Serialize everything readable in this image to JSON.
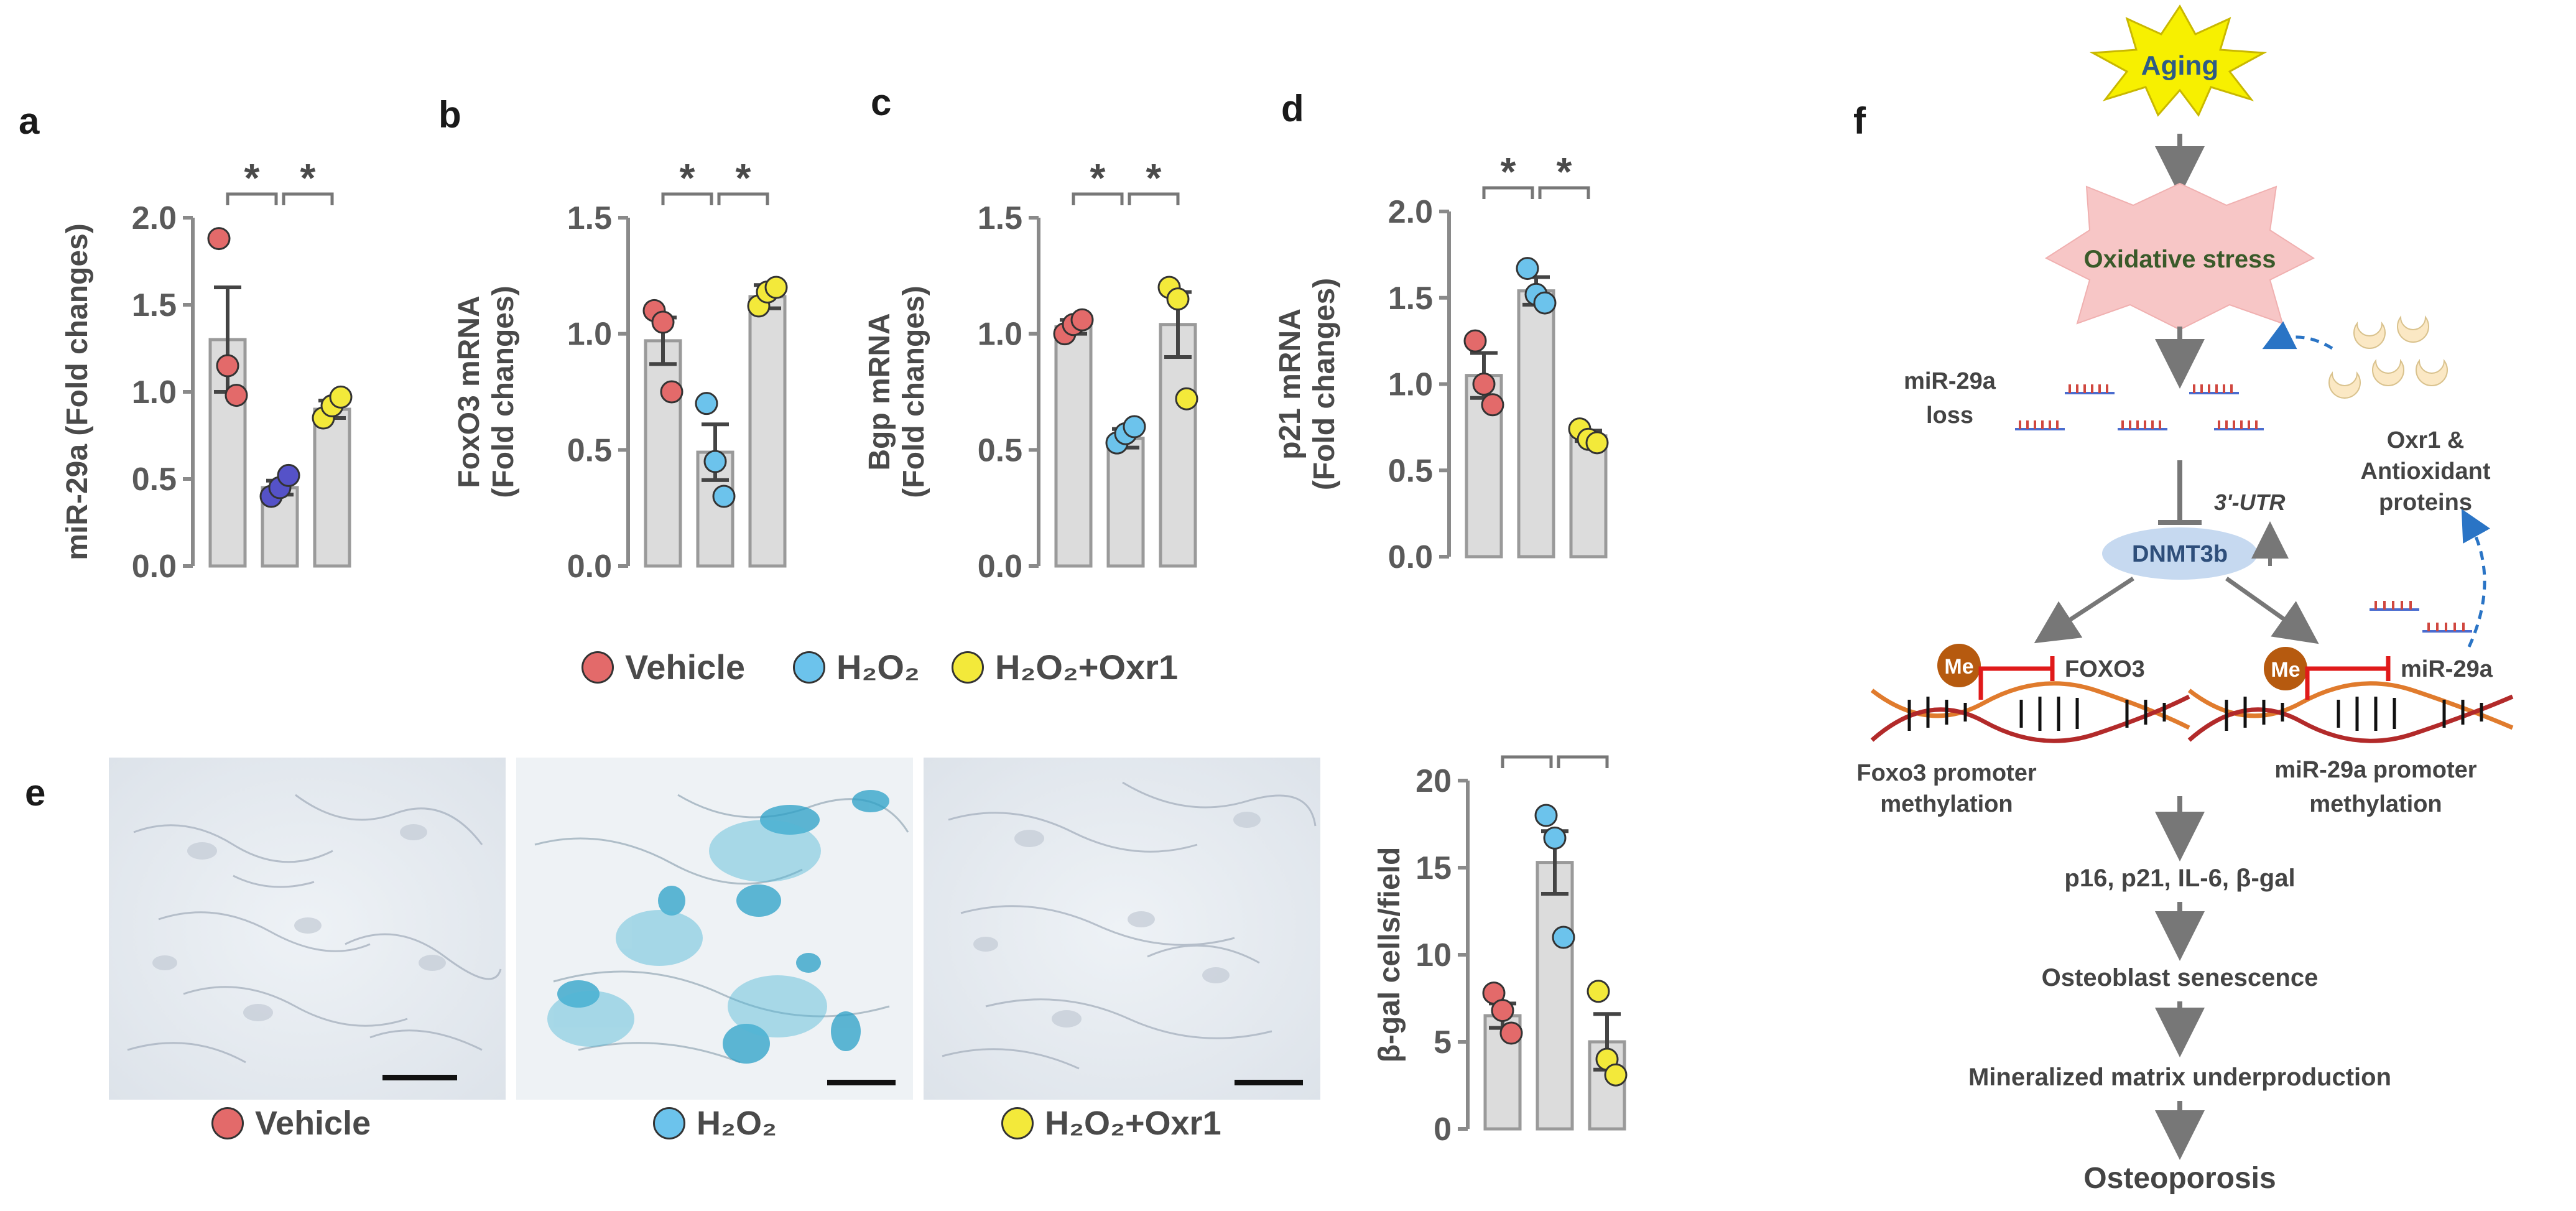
{
  "panels": {
    "a": "a",
    "b": "b",
    "c": "c",
    "d": "d",
    "e": "e",
    "f": "f"
  },
  "chart_data": [
    {
      "id": "a",
      "type": "bar",
      "ylabel": "miR-29a (Fold changes)",
      "yticks": [
        "0.0",
        "0.5",
        "1.0",
        "1.5",
        "2.0"
      ],
      "ylim": [
        0,
        2.0
      ],
      "categories": [
        "Vehicle",
        "H2O2",
        "H2O2+Oxr1"
      ],
      "values": [
        1.3,
        0.45,
        0.9
      ],
      "errors": [
        0.3,
        0.04,
        0.05
      ],
      "points": [
        [
          1.88,
          1.15,
          0.98
        ],
        [
          0.4,
          0.45,
          0.52
        ],
        [
          0.85,
          0.92,
          0.97
        ]
      ],
      "point_colors": [
        "#e36a6a",
        "#5552c8",
        "#f3e93a"
      ],
      "significance": [
        "*",
        "*"
      ]
    },
    {
      "id": "b",
      "type": "bar",
      "ylabel": "FoxO3 mRNA",
      "ylabel2": "(Fold changes)",
      "yticks": [
        "0.0",
        "0.5",
        "1.0",
        "1.5"
      ],
      "ylim": [
        0,
        1.5
      ],
      "categories": [
        "Vehicle",
        "H2O2",
        "H2O2+Oxr1"
      ],
      "values": [
        0.97,
        0.49,
        1.16
      ],
      "errors": [
        0.1,
        0.12,
        0.05
      ],
      "points": [
        [
          1.1,
          1.05,
          0.75
        ],
        [
          0.7,
          0.45,
          0.3
        ],
        [
          1.12,
          1.18,
          1.2
        ]
      ],
      "point_colors": [
        "#e36a6a",
        "#6cc3ec",
        "#f3e93a"
      ],
      "significance": [
        "*",
        "*"
      ]
    },
    {
      "id": "c",
      "type": "bar",
      "ylabel": "Bgp mRNA",
      "ylabel2": "(Fold changes)",
      "yticks": [
        "0.0",
        "0.5",
        "1.0",
        "1.5"
      ],
      "ylim": [
        0,
        1.5
      ],
      "categories": [
        "Vehicle",
        "H2O2",
        "H2O2+Oxr1"
      ],
      "values": [
        1.03,
        0.55,
        1.04
      ],
      "errors": [
        0.03,
        0.04,
        0.14
      ],
      "points": [
        [
          1.0,
          1.04,
          1.06
        ],
        [
          0.53,
          0.57,
          0.6
        ],
        [
          1.2,
          1.15,
          0.72
        ]
      ],
      "point_colors": [
        "#e36a6a",
        "#6cc3ec",
        "#f3e93a"
      ],
      "significance": [
        "*",
        "*"
      ]
    },
    {
      "id": "d",
      "type": "bar",
      "ylabel": "p21 mRNA",
      "ylabel2": "(Fold changes)",
      "yticks": [
        "0.0",
        "0.5",
        "1.0",
        "1.5",
        "2.0"
      ],
      "ylim": [
        0,
        2.0
      ],
      "categories": [
        "Vehicle",
        "H2O2",
        "H2O2+Oxr1"
      ],
      "values": [
        1.05,
        1.54,
        0.7
      ],
      "errors": [
        0.13,
        0.08,
        0.03
      ],
      "points": [
        [
          1.25,
          1.0,
          0.88
        ],
        [
          1.67,
          1.52,
          1.47
        ],
        [
          0.74,
          0.68,
          0.66
        ]
      ],
      "point_colors": [
        "#e36a6a",
        "#6cc3ec",
        "#f3e93a"
      ],
      "significance": [
        "*",
        "*"
      ]
    },
    {
      "id": "e",
      "type": "bar",
      "ylabel": "β-gal cells/field",
      "yticks": [
        "0",
        "5",
        "10",
        "15",
        "20"
      ],
      "ylim": [
        0,
        20
      ],
      "categories": [
        "Vehicle",
        "H2O2",
        "H2O2+Oxr1"
      ],
      "values": [
        6.5,
        15.3,
        5.0
      ],
      "errors": [
        0.7,
        1.8,
        1.6
      ],
      "points": [
        [
          7.8,
          6.8,
          5.5
        ],
        [
          18.0,
          16.7,
          11.0
        ],
        [
          7.9,
          4.0,
          3.1
        ]
      ],
      "point_colors": [
        "#e36a6a",
        "#6cc3ec",
        "#f3e93a"
      ],
      "significance": [
        "*",
        "*"
      ]
    }
  ],
  "legend": [
    {
      "label": "Vehicle",
      "color": "#e36a6a"
    },
    {
      "label": "H₂O₂",
      "color": "#6cc3ec"
    },
    {
      "label": "H₂O₂+Oxr1",
      "color": "#f3e93a"
    }
  ],
  "micrographs": [
    {
      "label": "Vehicle",
      "color": "#e36a6a"
    },
    {
      "label": "H₂O₂",
      "color": "#6cc3ec"
    },
    {
      "label": "H₂O₂+Oxr1",
      "color": "#f3e93a"
    }
  ],
  "diagram": {
    "aging": "Aging",
    "oxidative_stress": "Oxidative stress",
    "mir29a_loss_line1": "miR-29a",
    "mir29a_loss_line2": "loss",
    "utr": "3'-UTR",
    "dnmt3b": "DNMT3b",
    "oxr1_line1": "Oxr1 &",
    "oxr1_line2": "Antioxidant",
    "oxr1_line3": "proteins",
    "me": "Me",
    "foxo3": "FOXO3",
    "mir29a": "miR-29a",
    "foxo3_promoter_1": "Foxo3 promoter",
    "foxo3_promoter_2": "methylation",
    "mir_promoter_1": "miR-29a promoter",
    "mir_promoter_2": "methylation",
    "markers": "p16, p21, IL-6, β-gal",
    "senescence": "Osteoblast senescence",
    "matrix": "Mineralized matrix underproduction",
    "osteoporosis": "Osteoporosis"
  }
}
